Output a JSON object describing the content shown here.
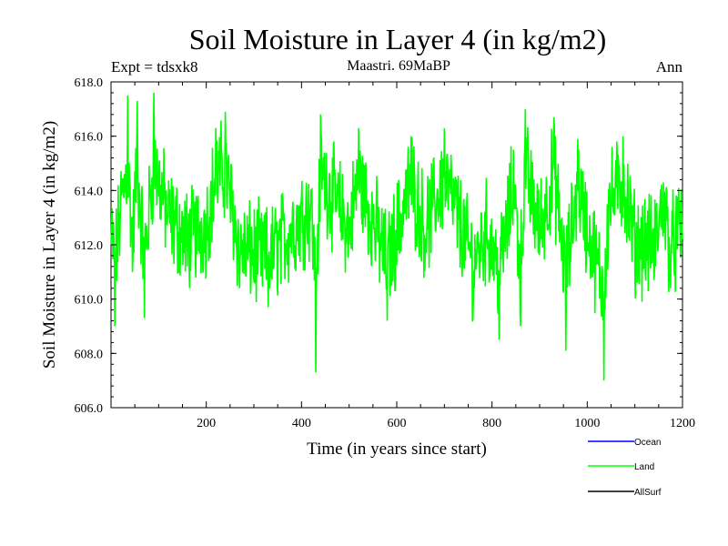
{
  "header": {
    "title": "Soil Moisture in Layer 4 (in kg/m2)",
    "expt": "Expt = tdsxk8",
    "period": "Maastri.  69MaBP",
    "season": "Ann"
  },
  "colors": {
    "ocean": "#0000ff",
    "land": "#00ff00",
    "allsurf": "#000000",
    "axis": "#000000",
    "background": "#ffffff"
  },
  "chart_data": {
    "type": "line",
    "title": "Soil Moisture in Layer 4 (in kg/m2)",
    "xlabel": "Time (in years since start)",
    "ylabel": "Soil Moisture in Layer 4 (in kg/m2)",
    "xlim": [
      0,
      1200
    ],
    "ylim": [
      606.0,
      618.0
    ],
    "x_ticks": [
      200,
      400,
      600,
      800,
      1000,
      1200
    ],
    "x_tick_labels": [
      "200",
      "400",
      "600",
      "800",
      "1000",
      "1200"
    ],
    "y_ticks": [
      606,
      608,
      610,
      612,
      614,
      616,
      618
    ],
    "y_tick_labels": [
      "606.0",
      "608.0",
      "610.0",
      "612.0",
      "614.0",
      "616.0",
      "618.0"
    ],
    "grid": false,
    "legend_position": "bottom-right",
    "series": [
      {
        "name": "Ocean",
        "color": "#0000ff",
        "values": []
      },
      {
        "name": "Land",
        "color": "#00ff00",
        "note": "annual values, 1 point per year, 1200 years",
        "mean": 613.0,
        "noise_amplitude": 1.5,
        "keypoints": [
          [
            0,
            612.0
          ],
          [
            8,
            609.0
          ],
          [
            20,
            613.5
          ],
          [
            35,
            617.5
          ],
          [
            45,
            611.0
          ],
          [
            55,
            617.3
          ],
          [
            70,
            609.3
          ],
          [
            90,
            617.6
          ],
          [
            120,
            613.0
          ],
          [
            160,
            611.2
          ],
          [
            200,
            612.5
          ],
          [
            220,
            616.3
          ],
          [
            240,
            616.9
          ],
          [
            270,
            610.4
          ],
          [
            330,
            609.7
          ],
          [
            420,
            614.0
          ],
          [
            430,
            607.3
          ],
          [
            440,
            616.8
          ],
          [
            500,
            612.0
          ],
          [
            520,
            616.3
          ],
          [
            580,
            609.2
          ],
          [
            630,
            616.0
          ],
          [
            660,
            612.0
          ],
          [
            700,
            616.3
          ],
          [
            760,
            609.3
          ],
          [
            790,
            612.0
          ],
          [
            815,
            608.5
          ],
          [
            845,
            615.5
          ],
          [
            860,
            609.0
          ],
          [
            870,
            617.0
          ],
          [
            900,
            612.0
          ],
          [
            930,
            616.7
          ],
          [
            955,
            608.1
          ],
          [
            980,
            615.9
          ],
          [
            1000,
            612.0
          ],
          [
            1035,
            607.0
          ],
          [
            1045,
            614.0
          ],
          [
            1075,
            616.0
          ],
          [
            1100,
            611.0
          ],
          [
            1140,
            610.7
          ],
          [
            1160,
            614.3
          ],
          [
            1175,
            610.4
          ],
          [
            1200,
            612.2
          ]
        ]
      },
      {
        "name": "AllSurf",
        "color": "#000000",
        "values": []
      }
    ]
  }
}
